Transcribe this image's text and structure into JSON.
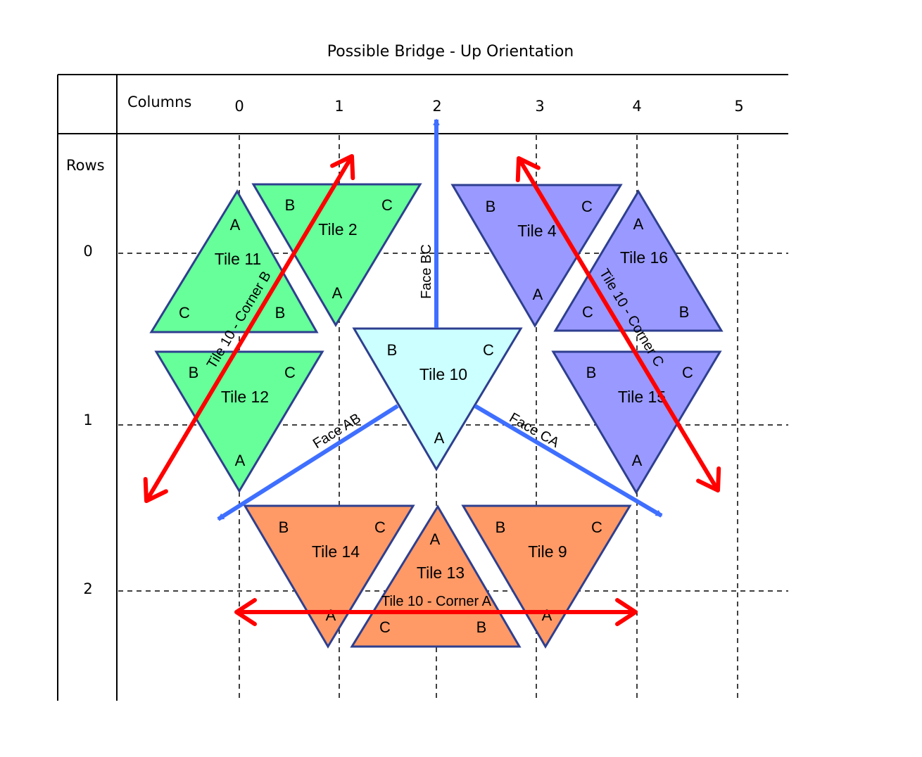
{
  "title": "Possible Bridge - Up Orientation",
  "columns_label": "Columns",
  "rows_label": "Rows",
  "column_numbers": [
    "0",
    "1",
    "2",
    "3",
    "4",
    "5"
  ],
  "row_numbers": [
    "0",
    "1",
    "2"
  ],
  "colors": {
    "green": "#66ff99",
    "purple": "#9999ff",
    "cyan": "#ccffff",
    "orange": "#ff9966",
    "outline": "#2e3f8f",
    "blue_arrow": "#3f6fff",
    "red_arrow": "#ff0000"
  },
  "tiles": [
    {
      "name": "Tile 11",
      "color": "green",
      "orientation": "up",
      "corners": {
        "top": "A",
        "left": "C",
        "right": "B"
      }
    },
    {
      "name": "Tile 2",
      "color": "green",
      "orientation": "down",
      "corners": {
        "left": "B",
        "right": "C",
        "bottom": "A"
      }
    },
    {
      "name": "Tile 12",
      "color": "green",
      "orientation": "down",
      "corners": {
        "left": "B",
        "right": "C",
        "bottom": "A"
      }
    },
    {
      "name": "Tile 4",
      "color": "purple",
      "orientation": "down",
      "corners": {
        "left": "B",
        "right": "C",
        "bottom": "A"
      }
    },
    {
      "name": "Tile 16",
      "color": "purple",
      "orientation": "up",
      "corners": {
        "top": "A",
        "left": "C",
        "right": "B"
      }
    },
    {
      "name": "Tile 15",
      "color": "purple",
      "orientation": "down",
      "corners": {
        "left": "B",
        "right": "C",
        "bottom": "A"
      }
    },
    {
      "name": "Tile 10",
      "color": "cyan",
      "orientation": "down",
      "corners": {
        "left": "B",
        "right": "C",
        "bottom": "A"
      }
    },
    {
      "name": "Tile 14",
      "color": "orange",
      "orientation": "down",
      "corners": {
        "left": "B",
        "right": "C",
        "bottom": "A"
      }
    },
    {
      "name": "Tile 13",
      "color": "orange",
      "orientation": "up",
      "corners": {
        "top": "A",
        "left": "C",
        "right": "B"
      }
    },
    {
      "name": "Tile 9",
      "color": "orange",
      "orientation": "down",
      "corners": {
        "left": "B",
        "right": "C",
        "bottom": "A"
      }
    }
  ],
  "blue_arrows": [
    "Face BC",
    "Face AB",
    "Face CA"
  ],
  "red_arrows": [
    "Tile 10 - Corner B",
    "Tile 10 - Corner C",
    "Tile 10 - Corner A"
  ]
}
